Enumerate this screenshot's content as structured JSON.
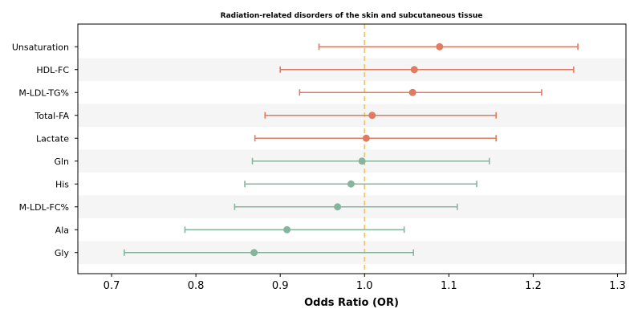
{
  "chart_data": {
    "type": "forest",
    "title": "Radiation-related disorders of the skin and subcutaneous tissue",
    "xlabel": "Odds Ratio (OR)",
    "ylabel": "",
    "xlim": [
      0.66,
      1.31
    ],
    "xticks": [
      0.7,
      0.8,
      0.9,
      1.0,
      1.1,
      1.2,
      1.3
    ],
    "xtick_labels": [
      "0.7",
      "0.8",
      "0.9",
      "1.0",
      "1.1",
      "1.2",
      "1.3"
    ],
    "reference_line": 1.0,
    "grid": false,
    "legend": "none",
    "rows": [
      {
        "label": "Unsaturation",
        "or": 1.089,
        "lower": 0.946,
        "upper": 1.253,
        "group": "risk"
      },
      {
        "label": "HDL-FC",
        "or": 1.059,
        "lower": 0.9,
        "upper": 1.248,
        "group": "risk"
      },
      {
        "label": "M-LDL-TG%",
        "or": 1.057,
        "lower": 0.923,
        "upper": 1.21,
        "group": "risk"
      },
      {
        "label": "Total-FA",
        "or": 1.009,
        "lower": 0.882,
        "upper": 1.156,
        "group": "risk"
      },
      {
        "label": "Lactate",
        "or": 1.002,
        "lower": 0.87,
        "upper": 1.156,
        "group": "risk"
      },
      {
        "label": "Gln",
        "or": 0.997,
        "lower": 0.867,
        "upper": 1.148,
        "group": "protective"
      },
      {
        "label": "His",
        "or": 0.984,
        "lower": 0.858,
        "upper": 1.133,
        "group": "protective"
      },
      {
        "label": "M-LDL-FC%",
        "or": 0.968,
        "lower": 0.846,
        "upper": 1.11,
        "group": "protective"
      },
      {
        "label": "Ala",
        "or": 0.908,
        "lower": 0.787,
        "upper": 1.047,
        "group": "protective"
      },
      {
        "label": "Gly",
        "or": 0.869,
        "lower": 0.715,
        "upper": 1.058,
        "group": "protective"
      }
    ],
    "colors": {
      "risk": "#e07b5f",
      "protective": "#86b59e",
      "reference_line": "#f2c46f",
      "band": "#f5f5f5"
    }
  }
}
